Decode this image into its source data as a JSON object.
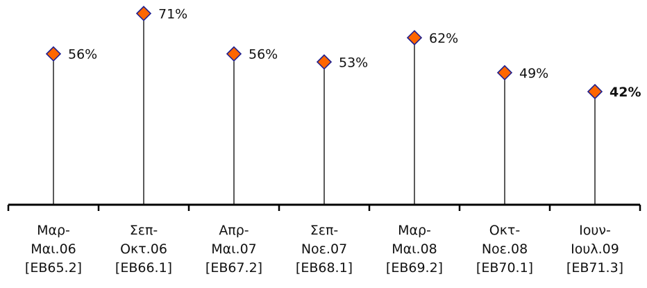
{
  "chart_data": {
    "type": "lollipop",
    "title": "",
    "xlabel": "",
    "ylabel": "",
    "ylim": [
      0,
      76
    ],
    "grid": false,
    "legend": "none",
    "categories": [
      [
        "Μαρ-",
        "Μαι.06",
        "[EB65.2]"
      ],
      [
        "Σεπ-",
        "Οκτ.06",
        "[EB66.1]"
      ],
      [
        "Απρ-",
        "Μαι.07",
        "[EB67.2]"
      ],
      [
        "Σεπ-",
        "Νοε.07",
        "[EB68.1]"
      ],
      [
        "Μαρ-",
        "Μαι.08",
        "[EB69.2]"
      ],
      [
        "Οκτ-",
        "Νοε.08",
        "[EB70.1]"
      ],
      [
        "Ιουν-",
        "Ιουλ.09",
        "[EB71.3]"
      ]
    ],
    "values": [
      56,
      71,
      56,
      53,
      62,
      49,
      42
    ],
    "value_labels": [
      "56%",
      "71%",
      "56%",
      "53%",
      "62%",
      "49%",
      "42%"
    ],
    "highlight_last": true
  },
  "colors": {
    "marker_fill": "#FF6600",
    "marker_stroke": "#1F1F8F",
    "stem": "#000000",
    "axis": "#000000",
    "text": "#111111"
  }
}
